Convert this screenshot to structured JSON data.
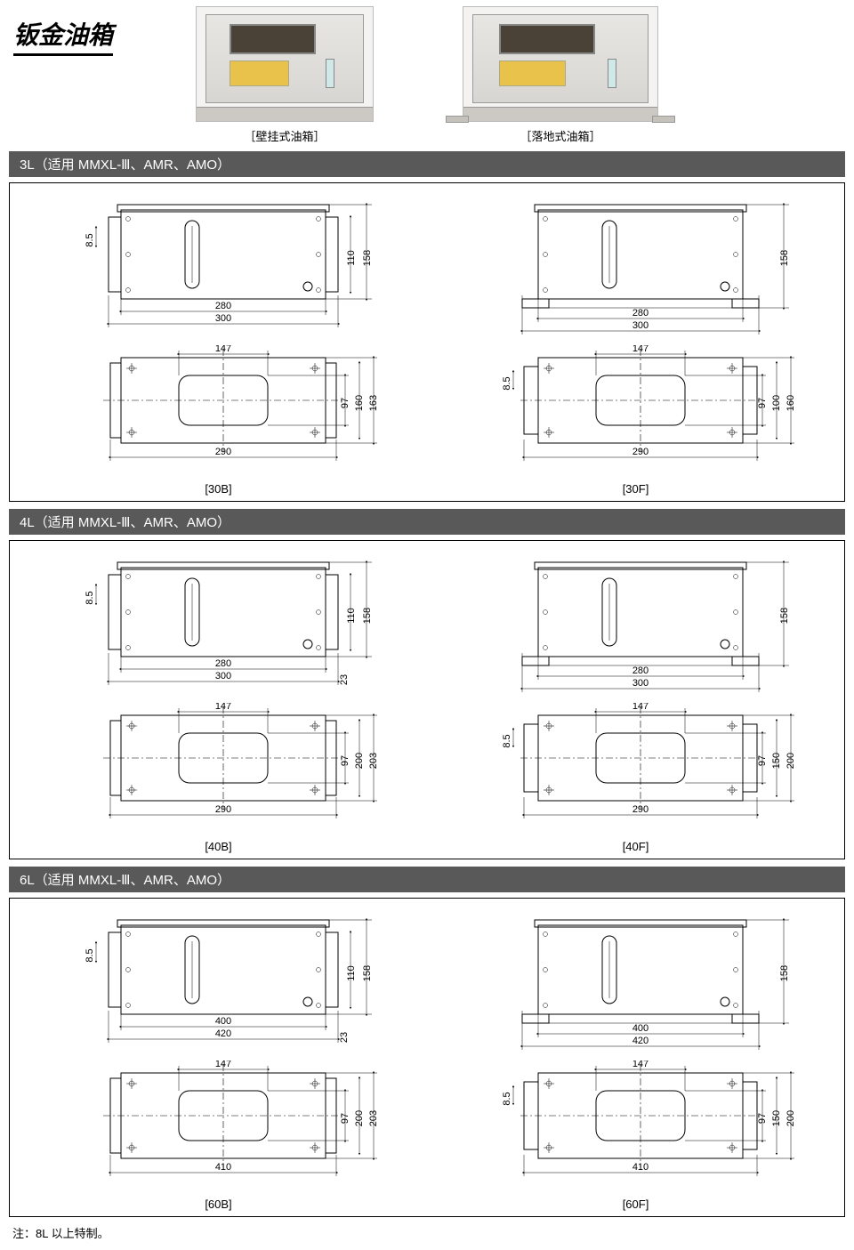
{
  "title": "钣金油箱",
  "photos": {
    "wall_caption": "［壁挂式油箱］",
    "floor_caption": "［落地式油箱］"
  },
  "sections": [
    {
      "bar": "3L（适用 MMXL-Ⅲ、AMR、AMO）",
      "left": {
        "model": "[30B]",
        "front": {
          "inner_w": "280",
          "outer_w": "300",
          "h_inner": "110",
          "h_outer": "158",
          "left_dim": "8.5"
        },
        "top": {
          "slot_w": "147",
          "outer_w": "290",
          "h1": "97",
          "h2": "160",
          "h3": "163"
        }
      },
      "right": {
        "model": "[30F]",
        "front": {
          "inner_w": "280",
          "outer_w": "300",
          "h_outer": "158"
        },
        "top": {
          "slot_w": "147",
          "outer_w": "290",
          "left_dim": "8.5",
          "h1": "97",
          "h2": "100",
          "h3": "160"
        }
      }
    },
    {
      "bar": "4L（适用 MMXL-Ⅲ、AMR、AMO）",
      "left": {
        "model": "[40B]",
        "front": {
          "inner_w": "280",
          "outer_w": "300",
          "h_inner": "110",
          "h_outer": "158",
          "left_dim": "8.5",
          "right_dim": "23"
        },
        "top": {
          "slot_w": "147",
          "outer_w": "290",
          "h1": "97",
          "h2": "200",
          "h3": "203"
        }
      },
      "right": {
        "model": "[40F]",
        "front": {
          "inner_w": "280",
          "outer_w": "300",
          "h_outer": "158"
        },
        "top": {
          "slot_w": "147",
          "outer_w": "290",
          "left_dim": "8.5",
          "h1": "97",
          "h2": "150",
          "h3": "200"
        }
      }
    },
    {
      "bar": "6L（适用 MMXL-Ⅲ、AMR、AMO）",
      "left": {
        "model": "[60B]",
        "front": {
          "inner_w": "400",
          "outer_w": "420",
          "h_inner": "110",
          "h_outer": "158",
          "left_dim": "8.5",
          "right_dim": "23"
        },
        "top": {
          "slot_w": "147",
          "outer_w": "410",
          "h1": "97",
          "h2": "200",
          "h3": "203"
        }
      },
      "right": {
        "model": "[60F]",
        "front": {
          "inner_w": "400",
          "outer_w": "420",
          "h_outer": "158"
        },
        "top": {
          "slot_w": "147",
          "outer_w": "410",
          "left_dim": "8.5",
          "h1": "97",
          "h2": "150",
          "h3": "200"
        }
      }
    }
  ],
  "footnote": "注：8L 以上特制。",
  "colors": {
    "bar_bg": "#595959",
    "bar_text": "#ffffff",
    "line": "#000000",
    "page_bg": "#ffffff"
  }
}
